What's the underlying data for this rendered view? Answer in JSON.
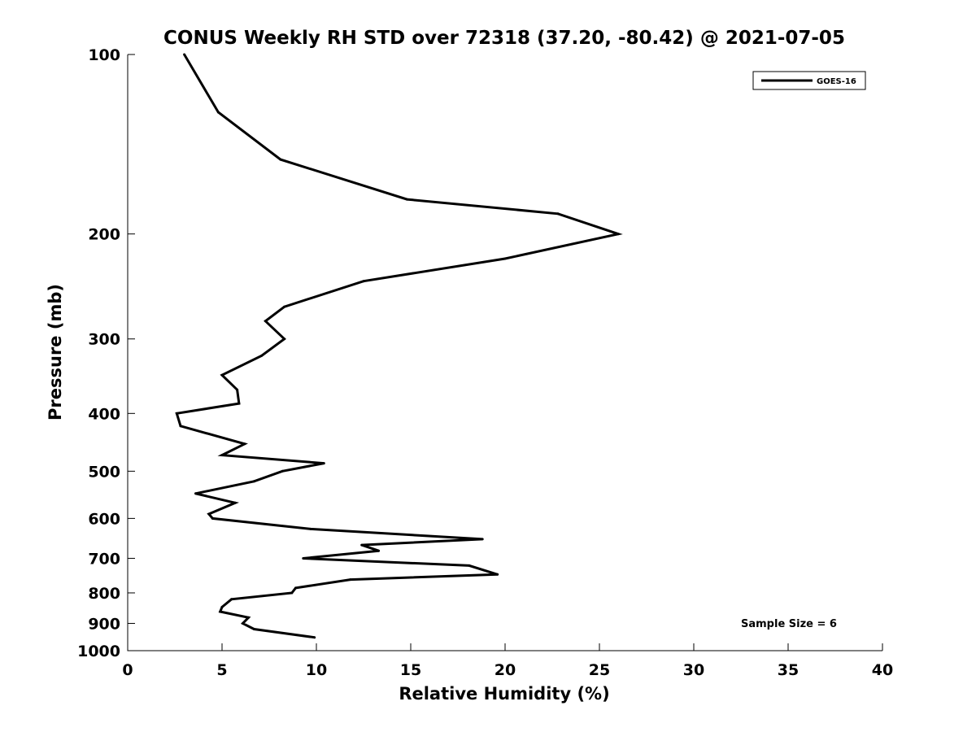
{
  "chart_data": {
    "type": "line",
    "title": "CONUS Weekly RH STD over 72318 (37.20, -80.42) @ 2021-07-05",
    "xlabel": "Relative Humidity (%)",
    "ylabel": "Pressure (mb)",
    "xlim": [
      0,
      40
    ],
    "ylim": [
      100,
      1000
    ],
    "y_scale": "log",
    "y_reversed": true,
    "grid": false,
    "legend_position": "top-right",
    "x_ticks": [
      "0",
      "5",
      "10",
      "15",
      "20",
      "25",
      "30",
      "35",
      "40"
    ],
    "y_ticks": [
      "100",
      "200",
      "300",
      "400",
      "500",
      "600",
      "700",
      "800",
      "900",
      "1000"
    ],
    "annotation": "Sample Size = 6",
    "series": [
      {
        "name": "GOES-16",
        "color": "#000000",
        "x": [
          3.0,
          4.8,
          8.1,
          14.8,
          22.8,
          26.0,
          20.0,
          12.5,
          8.3,
          7.3,
          8.3,
          7.1,
          5.0,
          5.8,
          5.9,
          2.6,
          2.8,
          6.2,
          5.0,
          10.4,
          8.2,
          6.7,
          3.6,
          5.7,
          4.3,
          4.5,
          9.7,
          18.8,
          12.4,
          13.3,
          9.3,
          18.1,
          19.6,
          11.8,
          8.9,
          8.7,
          5.5,
          5.0,
          4.9,
          6.4,
          6.1,
          6.7,
          9.9
        ],
        "y": [
          100,
          125,
          150,
          175,
          185,
          200,
          220,
          240,
          265,
          280,
          300,
          320,
          345,
          365,
          385,
          400,
          420,
          450,
          470,
          485,
          500,
          520,
          545,
          565,
          590,
          600,
          625,
          650,
          665,
          680,
          700,
          720,
          745,
          760,
          785,
          800,
          820,
          845,
          860,
          880,
          900,
          920,
          950
        ]
      }
    ]
  }
}
